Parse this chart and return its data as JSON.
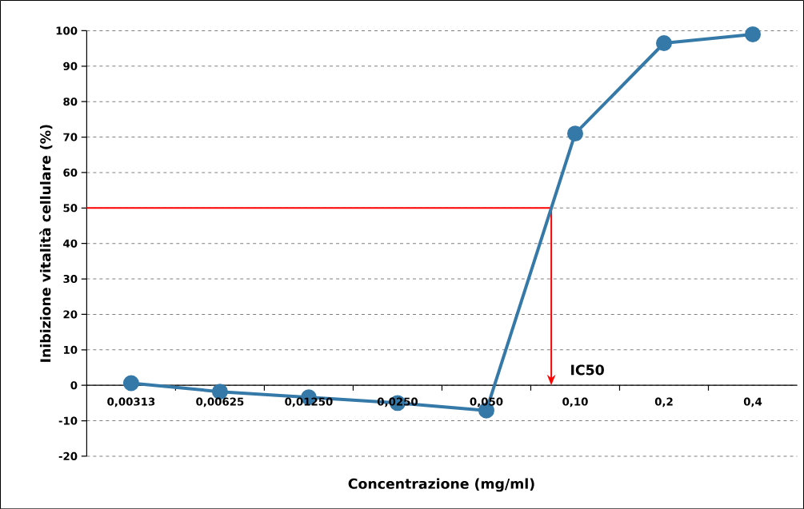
{
  "chart_data": {
    "type": "line",
    "xlabel": "Concentrazione (mg/ml)",
    "ylabel": "Inibizione vitalità cellulare (%)",
    "categories": [
      "0,00313",
      "0,00625",
      "0,01250",
      "0,0250",
      "0,050",
      "0,10",
      "0,2",
      "0,4"
    ],
    "values": [
      0.6,
      -1.8,
      -3.4,
      -5.0,
      -7.1,
      71.0,
      96.5,
      99.0
    ],
    "color": "#3579a8",
    "marker": "circle",
    "grid": "y",
    "ylim": [
      -20,
      100
    ],
    "yticks": [
      -20,
      -10,
      0,
      10,
      20,
      30,
      40,
      50,
      60,
      70,
      80,
      90,
      100
    ],
    "ref_lines": [
      {
        "axis": "y",
        "value": 50,
        "color": "#ff0000"
      }
    ],
    "annotations": [
      "IC50"
    ]
  }
}
